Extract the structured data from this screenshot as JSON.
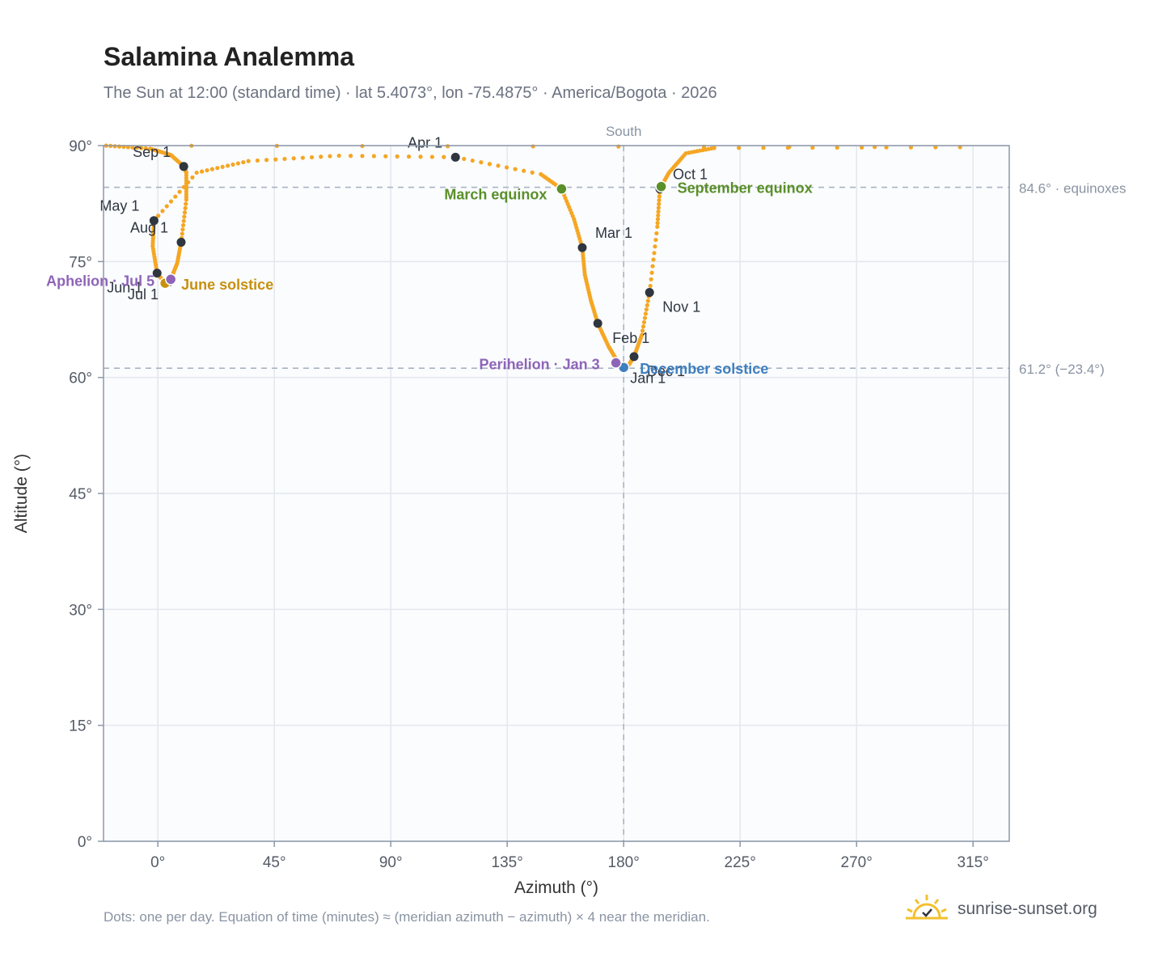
{
  "header": {
    "title": "Salamina Analemma",
    "subtitle": "The Sun at 12:00 (standard time) · lat 5.4073°, lon -75.4875° · America/Bogota · 2026"
  },
  "footer": {
    "note": "Dots: one per day. Equation of time (minutes) ≈ (meridian azimuth − azimuth) × 4 near the meridian.",
    "brand": "sunrise-sunset.org"
  },
  "chart_data": {
    "type": "scatter",
    "title": "Salamina Analemma",
    "xlabel": "Azimuth (°)",
    "ylabel": "Altitude (°)",
    "xlim": [
      -21,
      329
    ],
    "ylim": [
      0,
      90
    ],
    "x_ticks": [
      0,
      45,
      90,
      135,
      180,
      225,
      270,
      315
    ],
    "y_ticks": [
      0,
      15,
      30,
      45,
      60,
      75,
      90
    ],
    "x_tick_labels": [
      "0°",
      "45°",
      "90°",
      "135°",
      "180°",
      "225°",
      "270°",
      "315°"
    ],
    "y_tick_labels": [
      "0°",
      "15°",
      "30°",
      "45°",
      "60°",
      "75°",
      "90°"
    ],
    "grid": true,
    "colors": {
      "path": "#f5a623",
      "month": "#2f3640",
      "equinox": "#5a8f29",
      "june_solstice": "#c8900e",
      "december_solstice": "#3f7fbf",
      "apsis": "#8e64b8",
      "reference": "#aab4c3",
      "plot_bg": "#fafcfe"
    },
    "reference_lines": [
      {
        "axis": "y",
        "value": 84.6,
        "label": "84.6° · equinoxes"
      },
      {
        "axis": "y",
        "value": 61.2,
        "label": "61.2° (−23.4°)"
      },
      {
        "axis": "x",
        "value": 180,
        "label": "South"
      }
    ],
    "path_anchors": [
      {
        "date": "Jan 1",
        "az": 180.0,
        "alt": 61.4
      },
      {
        "date": "Jan 10",
        "az": 177.4,
        "alt": 62.2
      },
      {
        "date": "Jan 20",
        "az": 174.2,
        "alt": 64.0
      },
      {
        "date": "Feb 1",
        "az": 170.0,
        "alt": 67.0
      },
      {
        "date": "Feb 10",
        "az": 167.3,
        "alt": 70.0
      },
      {
        "date": "Feb 20",
        "az": 165.0,
        "alt": 73.3
      },
      {
        "date": "Mar 1",
        "az": 164.0,
        "alt": 76.8
      },
      {
        "date": "Mar 10",
        "az": 160.8,
        "alt": 80.5
      },
      {
        "date": "Mar 20",
        "az": 156.0,
        "alt": 84.4
      },
      {
        "date": "Mar 25",
        "az": 148.0,
        "alt": 86.3
      },
      {
        "date": "Apr 1",
        "az": 115.0,
        "alt": 88.5
      },
      {
        "date": "Apr 10",
        "az": 70.0,
        "alt": 88.7
      },
      {
        "date": "Apr 18",
        "az": 35.0,
        "alt": 88.0
      },
      {
        "date": "Apr 24",
        "az": 15.0,
        "alt": 86.5
      },
      {
        "date": "May 1",
        "az": -1.5,
        "alt": 80.3
      },
      {
        "date": "May 15",
        "az": -2.0,
        "alt": 77.0
      },
      {
        "date": "Jun 1",
        "az": -0.3,
        "alt": 73.5
      },
      {
        "date": "Jun 21",
        "az": 3.0,
        "alt": 72.1
      },
      {
        "date": "Jul 1",
        "az": 4.0,
        "alt": 72.3
      },
      {
        "date": "Jul 5",
        "az": 5.0,
        "alt": 72.7
      },
      {
        "date": "Jul 20",
        "az": 7.5,
        "alt": 74.8
      },
      {
        "date": "Aug 1",
        "az": 9.0,
        "alt": 77.5
      },
      {
        "date": "Aug 15",
        "az": 11.0,
        "alt": 83.0
      },
      {
        "date": "Aug 25",
        "az": 11.0,
        "alt": 86.5
      },
      {
        "date": "Sep 1",
        "az": 10.0,
        "alt": 87.3
      },
      {
        "date": "Sep 6",
        "az": 5.0,
        "alt": 88.8
      },
      {
        "date": "Sep 10",
        "az": -3.0,
        "alt": 89.6
      },
      {
        "date": "Sep 14",
        "az": -20.0,
        "alt": 90.0
      },
      {
        "date": "Sep 18",
        "az": 310.0,
        "alt": 89.8
      },
      {
        "date": "Sep 21",
        "az": 215.0,
        "alt": 89.7
      },
      {
        "date": "Sep 24",
        "az": 204.0,
        "alt": 89.0
      },
      {
        "date": "Sep 28",
        "az": 197.5,
        "alt": 86.5
      },
      {
        "date": "Oct 1",
        "az": 194.0,
        "alt": 84.4
      },
      {
        "date": "Oct 15",
        "az": 193.0,
        "alt": 79.5
      },
      {
        "date": "Nov 1",
        "az": 190.0,
        "alt": 71.0
      },
      {
        "date": "Nov 15",
        "az": 187.0,
        "alt": 65.5
      },
      {
        "date": "Dec 1",
        "az": 184.0,
        "alt": 62.7
      },
      {
        "date": "Dec 15",
        "az": 181.5,
        "alt": 61.4
      },
      {
        "date": "Dec 21",
        "az": 180.3,
        "alt": 61.2
      },
      {
        "date": "Dec 31",
        "az": 180.0,
        "alt": 61.4
      }
    ],
    "month_markers": [
      {
        "label": "Jan 1",
        "az": 180.0,
        "alt": 61.4,
        "anchor": "start",
        "dx": 8,
        "dy": 20
      },
      {
        "label": "Feb 1",
        "az": 170.0,
        "alt": 67.0,
        "anchor": "start",
        "dx": 18,
        "dy": 24
      },
      {
        "label": "Mar 1",
        "az": 164.0,
        "alt": 76.8,
        "anchor": "start",
        "dx": 16,
        "dy": -12
      },
      {
        "label": "Apr 1",
        "az": 115.0,
        "alt": 88.5,
        "anchor": "end",
        "dx": -16,
        "dy": -12
      },
      {
        "label": "May 1",
        "az": -1.5,
        "alt": 80.3,
        "anchor": "end",
        "dx": -18,
        "dy": -12
      },
      {
        "label": "Jun 1",
        "az": -0.3,
        "alt": 73.5,
        "anchor": "end",
        "dx": -18,
        "dy": 24
      },
      {
        "label": "Jul 1",
        "az": 4.0,
        "alt": 72.3,
        "anchor": "end",
        "dx": -12,
        "dy": 21
      },
      {
        "label": "Aug 1",
        "az": 9.0,
        "alt": 77.5,
        "anchor": "end",
        "dx": -16,
        "dy": -12
      },
      {
        "label": "Sep 1",
        "az": 10.0,
        "alt": 87.3,
        "anchor": "end",
        "dx": -16,
        "dy": -12
      },
      {
        "label": "Oct 1",
        "az": 194.0,
        "alt": 84.4,
        "anchor": "start",
        "dx": 16,
        "dy": -12
      },
      {
        "label": "Nov 1",
        "az": 190.0,
        "alt": 71.0,
        "anchor": "start",
        "dx": 16,
        "dy": 24
      },
      {
        "label": "Dec 1",
        "az": 184.0,
        "alt": 62.7,
        "anchor": "start",
        "dx": 16,
        "dy": 24
      }
    ],
    "events": [
      {
        "label": "March equinox",
        "az": 156.0,
        "alt": 84.4,
        "color_key": "equinox",
        "anchor": "end",
        "dx": -18,
        "dy": 13
      },
      {
        "label": "September equinox",
        "az": 194.5,
        "alt": 84.7,
        "color_key": "equinox",
        "anchor": "start",
        "dx": 20,
        "dy": 8
      },
      {
        "label": "June solstice",
        "az": 2.8,
        "alt": 72.2,
        "color_key": "june_solstice",
        "anchor": "start",
        "dx": 20,
        "dy": 8
      },
      {
        "label": "December solstice",
        "az": 180.0,
        "alt": 61.3,
        "color_key": "december_solstice",
        "anchor": "start",
        "dx": 20,
        "dy": 8
      },
      {
        "label": "Perihelion · Jan 3",
        "az": 177.0,
        "alt": 61.9,
        "color_key": "apsis",
        "anchor": "end",
        "dx": -20,
        "dy": 8
      },
      {
        "label": "Aphelion · Jul 5",
        "az": 5.0,
        "alt": 72.7,
        "color_key": "apsis",
        "anchor": "end",
        "dx": -20,
        "dy": 8
      }
    ]
  }
}
